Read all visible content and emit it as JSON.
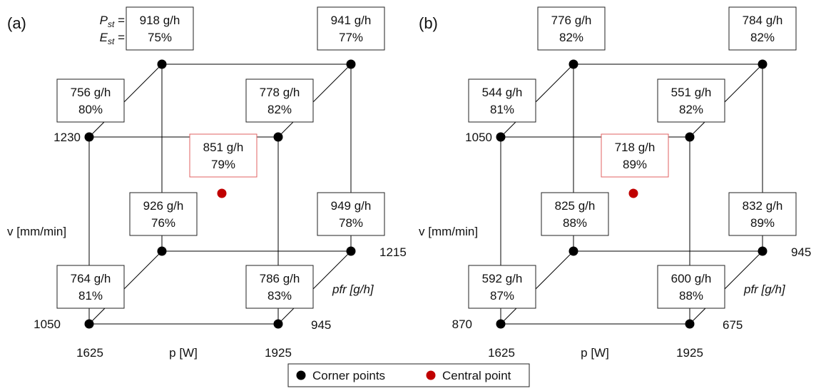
{
  "panels": [
    {
      "id": "a",
      "label": "(a)",
      "v_top": "1230",
      "v_bottom": "1050",
      "pfr_back": "1215",
      "pfr_front": "945",
      "p_left": "1625",
      "p_right": "1925",
      "axis_v": "v [mm/min]",
      "axis_pfr": "pfr [g/h]",
      "axis_p": "p [W]",
      "boxes": {
        "back_top_left": [
          "918 g/h",
          "75%"
        ],
        "back_top_right": [
          "941 g/h",
          "77%"
        ],
        "front_top_left": [
          "756 g/h",
          "80%"
        ],
        "front_top_right": [
          "778 g/h",
          "82%"
        ],
        "center": [
          "851 g/h",
          "79%"
        ],
        "back_bottom_left": [
          "926 g/h",
          "76%"
        ],
        "back_bottom_right": [
          "949 g/h",
          "78%"
        ],
        "front_bottom_left": [
          "764 g/h",
          "81%"
        ],
        "front_bottom_right": [
          "786 g/h",
          "83%"
        ]
      },
      "row_labels": {
        "pst": "P",
        "pst_sub": "st",
        "est": "E",
        "est_sub": "st",
        "eq": " ="
      }
    },
    {
      "id": "b",
      "label": "(b)",
      "v_top": "1050",
      "v_bottom": "870",
      "pfr_back": "945",
      "pfr_front": "675",
      "p_left": "1625",
      "p_right": "1925",
      "axis_v": "v [mm/min]",
      "axis_pfr": "pfr [g/h]",
      "axis_p": "p [W]",
      "boxes": {
        "back_top_left": [
          "776 g/h",
          "82%"
        ],
        "back_top_right": [
          "784 g/h",
          "82%"
        ],
        "front_top_left": [
          "544 g/h",
          "81%"
        ],
        "front_top_right": [
          "551 g/h",
          "82%"
        ],
        "center": [
          "718 g/h",
          "89%"
        ],
        "back_bottom_left": [
          "825 g/h",
          "88%"
        ],
        "back_bottom_right": [
          "832 g/h",
          "89%"
        ],
        "front_bottom_left": [
          "592 g/h",
          "87%"
        ],
        "front_bottom_right": [
          "600 g/h",
          "88%"
        ]
      }
    }
  ],
  "legend": {
    "corner": "Corner points",
    "central": "Central point"
  },
  "colors": {
    "corner": "#000000",
    "central": "#c00000",
    "center_box": "#e06060",
    "line": "#000000"
  }
}
